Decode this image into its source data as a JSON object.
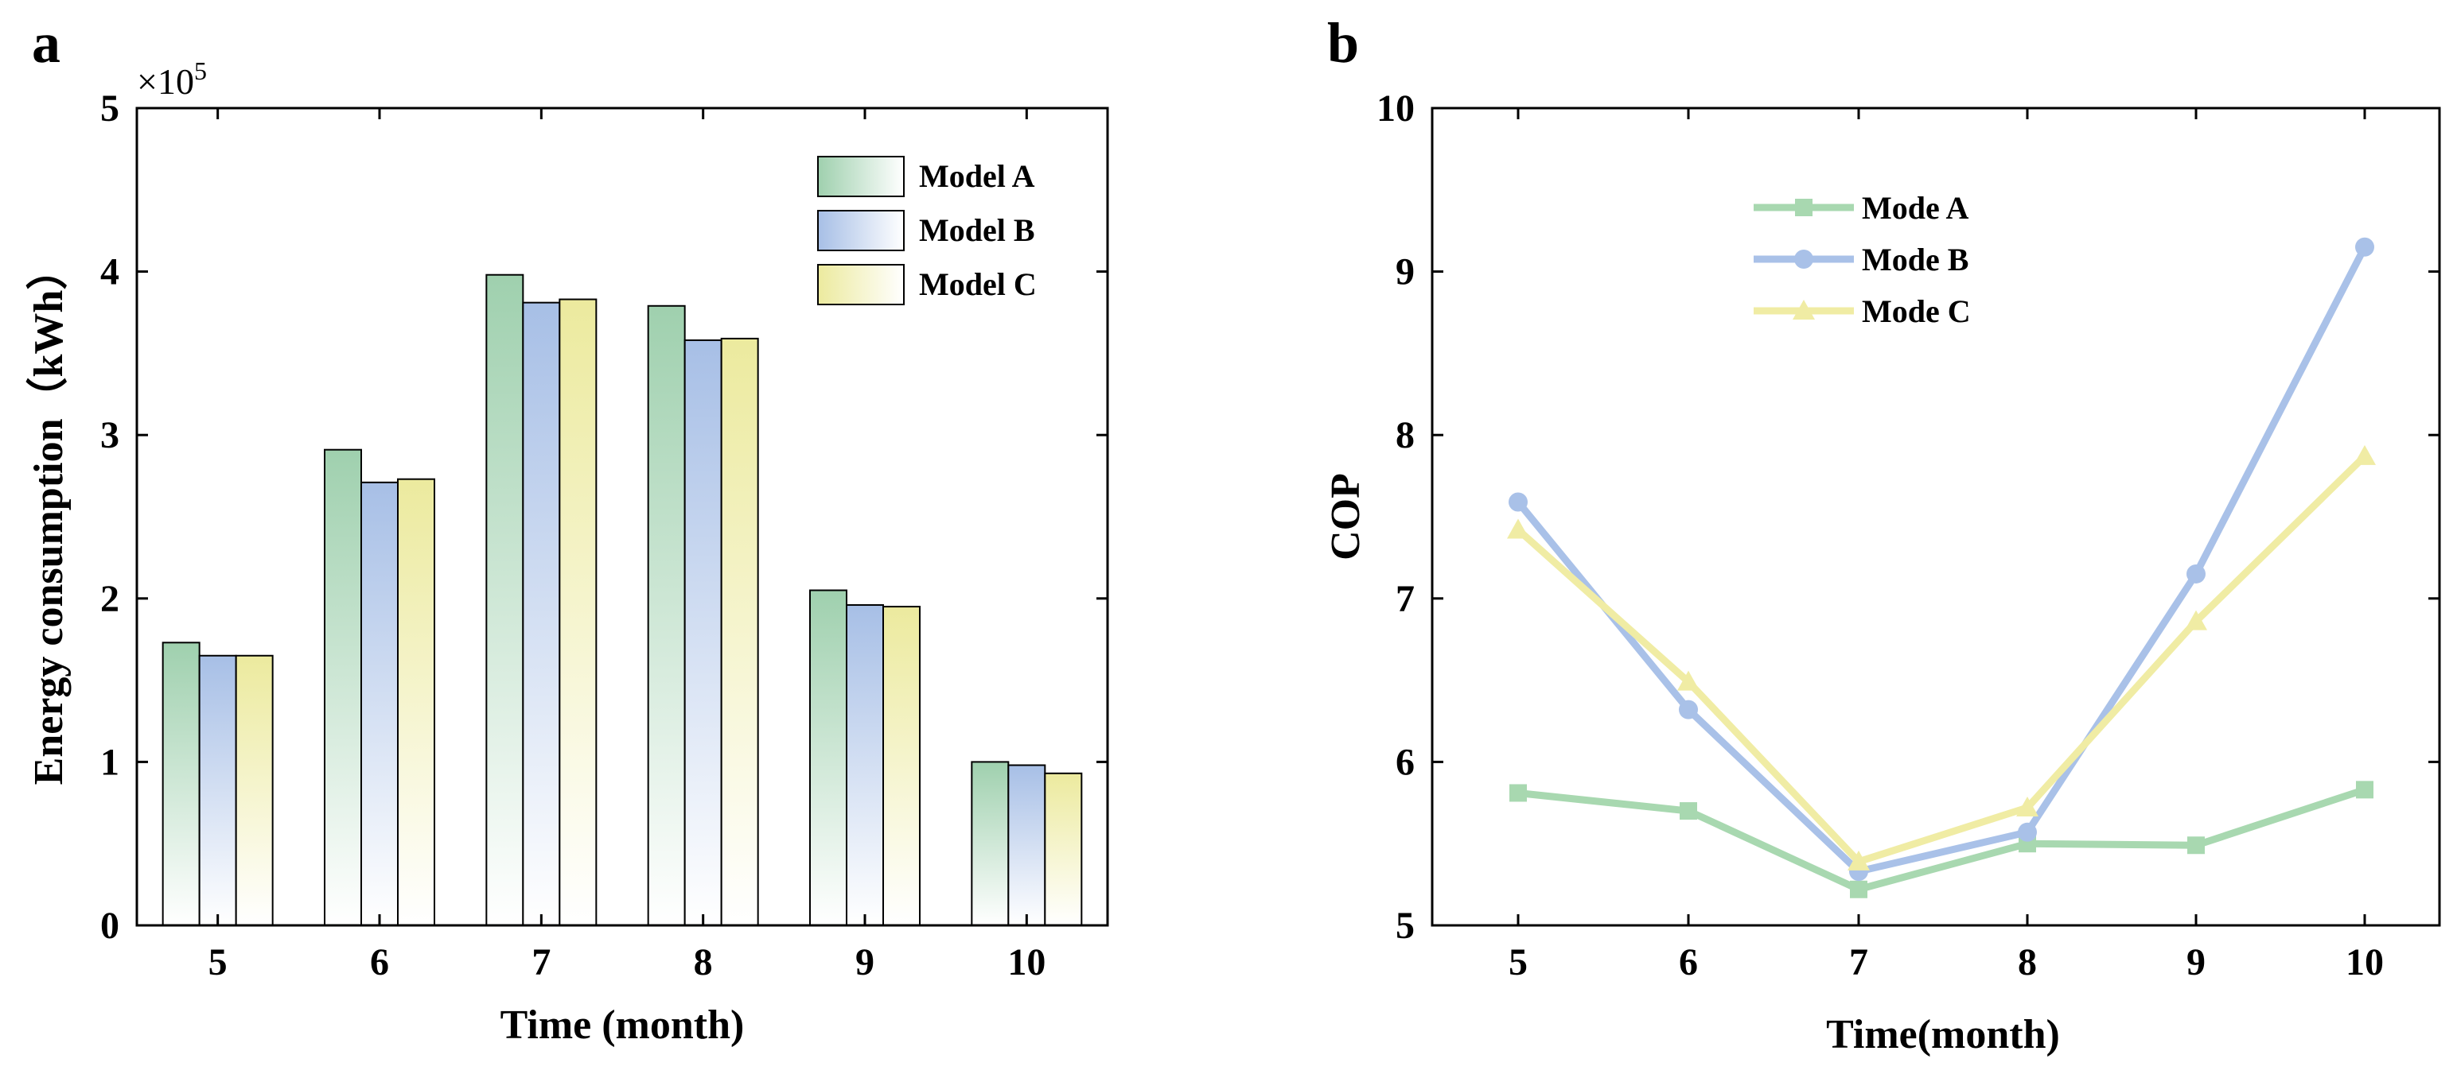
{
  "chart_data": [
    {
      "panel": "a",
      "type": "bar",
      "categories": [
        "5",
        "6",
        "7",
        "8",
        "9",
        "10"
      ],
      "series": [
        {
          "name": "Model A",
          "values": [
            1.73,
            2.91,
            3.98,
            3.79,
            2.05,
            1.0
          ],
          "color": "#9fd0ae"
        },
        {
          "name": "Model B",
          "values": [
            1.65,
            2.71,
            3.81,
            3.58,
            1.96,
            0.98
          ],
          "color": "#a7bfe6"
        },
        {
          "name": "Model C",
          "values": [
            1.65,
            2.73,
            3.83,
            3.59,
            1.95,
            0.93
          ],
          "color": "#ecea9e"
        }
      ],
      "xlabel": "Time (month)",
      "ylabel": "Energy consumption（kWh）",
      "multiplier": "×10",
      "multiplier_exp": "5",
      "ylim": [
        0,
        5
      ],
      "yticks": [
        "0",
        "1",
        "2",
        "3",
        "4",
        "5"
      ],
      "legend": "top-right"
    },
    {
      "panel": "b",
      "type": "line",
      "x": [
        "5",
        "6",
        "7",
        "8",
        "9",
        "10"
      ],
      "series": [
        {
          "name": "Mode A",
          "values": [
            5.81,
            5.7,
            5.22,
            5.5,
            5.49,
            5.83
          ],
          "color": "#a8d8b0",
          "marker": "square"
        },
        {
          "name": "Mode B",
          "values": [
            7.59,
            6.32,
            5.33,
            5.57,
            7.15,
            9.15
          ],
          "color": "#a9c1e8",
          "marker": "circle"
        },
        {
          "name": "Mode C",
          "values": [
            7.42,
            6.49,
            5.39,
            5.72,
            6.86,
            7.87
          ],
          "color": "#f0eca4",
          "marker": "triangle"
        }
      ],
      "xlabel": "Time(month)",
      "ylabel": "COP",
      "ylim": [
        5,
        10
      ],
      "yticks": [
        "5",
        "6",
        "7",
        "8",
        "9",
        "10"
      ],
      "legend": "top-left"
    }
  ]
}
